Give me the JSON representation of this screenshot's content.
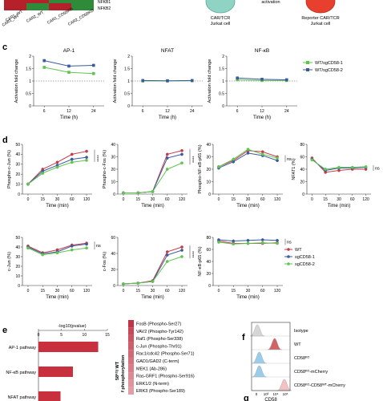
{
  "panel_labels": {
    "c": "c",
    "d": "d",
    "e": "e",
    "f": "f",
    "g": "g"
  },
  "top": {
    "heatmap_rows": [
      "NFKB1",
      "NFKB2"
    ],
    "heatmap_cols": [
      "CAR1_WT",
      "CAR2_WT",
      "CAR1_CD58KO",
      "CAR2_CD58KO"
    ],
    "cell1_label": [
      "CAR/TCR",
      "Jurkat cell"
    ],
    "cell2_label": [
      "Reporter CAR/TCR",
      "Jurkat cell"
    ],
    "arrow_label": "activation",
    "colors": {
      "cell1": "#8fd3c5",
      "cell2": "#e8402f",
      "heat_red": "#b5202b",
      "heat_green": "#2f8a3a"
    }
  },
  "legend_c": [
    "WT/sgCD58-1",
    "WT/sgCD58-2"
  ],
  "legend_d": [
    "WT",
    "sgCD58-1",
    "sgCD58-2"
  ],
  "colors": {
    "wt": "#c43c4c",
    "sg1": "#3a5b9c",
    "sg2": "#5fc450",
    "sg_light_c": "#5fc450",
    "bar": "#c9303e"
  },
  "chart_data": [
    {
      "type": "line",
      "title": "AP-1",
      "ylabel": "Activation fold change",
      "xlabel": "Time (h)",
      "x": [
        6,
        12,
        24
      ],
      "ylim": [
        0,
        2
      ],
      "yticks": [
        0,
        0.5,
        1,
        1.5,
        2
      ],
      "series": [
        {
          "name": "WT/sgCD58-1",
          "values": [
            1.55,
            1.35,
            1.3
          ]
        },
        {
          "name": "WT/sgCD58-2",
          "values": [
            1.82,
            1.6,
            1.63
          ]
        }
      ]
    },
    {
      "type": "line",
      "title": "NFAT",
      "ylabel": "Activation fold change",
      "xlabel": "Time (h)",
      "x": [
        6,
        12,
        24
      ],
      "ylim": [
        0,
        2
      ],
      "yticks": [
        0,
        0.5,
        1,
        1.5,
        2
      ],
      "series": [
        {
          "name": "WT/sgCD58-1",
          "values": [
            1.0,
            1.0,
            1.01
          ]
        },
        {
          "name": "WT/sgCD58-2",
          "values": [
            1.02,
            1.01,
            1.02
          ]
        }
      ]
    },
    {
      "type": "line",
      "title": "NF-κB",
      "ylabel": "Activation fold change",
      "xlabel": "Time (h)",
      "x": [
        6,
        12,
        24
      ],
      "ylim": [
        0,
        2
      ],
      "yticks": [
        0,
        0.5,
        1,
        1.5,
        2
      ],
      "series": [
        {
          "name": "WT/sgCD58-1",
          "values": [
            1.05,
            1.02,
            1.02
          ]
        },
        {
          "name": "WT/sgCD58-2",
          "values": [
            1.12,
            1.07,
            1.05
          ]
        }
      ]
    },
    {
      "type": "line",
      "ylabel": "Phospho-c-Jun (%)",
      "xlabel": "Time (min)",
      "x": [
        0,
        15,
        30,
        60,
        120
      ],
      "ylim": [
        0,
        50
      ],
      "yticks": [
        0,
        10,
        20,
        30,
        40,
        50
      ],
      "sig": "****",
      "series": [
        {
          "name": "WT",
          "values": [
            10,
            25,
            32,
            40,
            43
          ]
        },
        {
          "name": "sgCD58-1",
          "values": [
            10,
            23,
            29,
            35,
            37
          ]
        },
        {
          "name": "sgCD58-2",
          "values": [
            10,
            21,
            27,
            32,
            34
          ]
        }
      ]
    },
    {
      "type": "line",
      "ylabel": "Phospho-c-Fos (%)",
      "xlabel": "Time (min)",
      "x": [
        0,
        15,
        30,
        60,
        120
      ],
      "ylim": [
        0,
        40
      ],
      "yticks": [
        0,
        10,
        20,
        30,
        40
      ],
      "sig": "****",
      "series": [
        {
          "name": "WT",
          "values": [
            1,
            1,
            2,
            32,
            35
          ]
        },
        {
          "name": "sgCD58-1",
          "values": [
            1,
            1,
            2,
            29,
            32
          ]
        },
        {
          "name": "sgCD58-2",
          "values": [
            1,
            1,
            2,
            20,
            25
          ]
        }
      ]
    },
    {
      "type": "line",
      "ylabel": "Phospho-NF-κB-p65 (%)",
      "xlabel": "Time (min)",
      "x": [
        0,
        15,
        30,
        60,
        120
      ],
      "ylim": [
        0,
        40
      ],
      "yticks": [
        0,
        10,
        20,
        30,
        40
      ],
      "sig": "ns",
      "series": [
        {
          "name": "WT",
          "values": [
            22,
            27,
            35,
            34,
            30
          ]
        },
        {
          "name": "sgCD58-1",
          "values": [
            21,
            26,
            33,
            31,
            27
          ]
        },
        {
          "name": "sgCD58-2",
          "values": [
            22,
            28,
            36,
            32,
            29
          ]
        }
      ]
    },
    {
      "type": "line",
      "ylabel": "NFAT1 (%)",
      "xlabel": "Time (min)",
      "x": [
        0,
        15,
        30,
        60,
        120
      ],
      "ylim": [
        0,
        80
      ],
      "yticks": [
        0,
        20,
        40,
        60,
        80
      ],
      "sig": "ns",
      "series": [
        {
          "name": "WT",
          "values": [
            58,
            35,
            38,
            40,
            40
          ]
        },
        {
          "name": "sgCD58-1",
          "values": [
            56,
            38,
            42,
            42,
            43
          ]
        },
        {
          "name": "sgCD58-2",
          "values": [
            55,
            40,
            43,
            43,
            44
          ]
        }
      ]
    },
    {
      "type": "line",
      "ylabel": "c-Jun (%)",
      "xlabel": "Time (min)",
      "x": [
        0,
        15,
        30,
        60,
        120
      ],
      "ylim": [
        0,
        50
      ],
      "yticks": [
        0,
        10,
        20,
        30,
        40,
        50
      ],
      "sig": "ns",
      "series": [
        {
          "name": "WT",
          "values": [
            41,
            34,
            37,
            42,
            44
          ]
        },
        {
          "name": "sgCD58-1",
          "values": [
            40,
            33,
            35,
            41,
            43
          ]
        },
        {
          "name": "sgCD58-2",
          "values": [
            39,
            32,
            34,
            37,
            39
          ]
        }
      ]
    },
    {
      "type": "line",
      "ylabel": "c-Fos (%)",
      "xlabel": "Time (min)",
      "x": [
        0,
        15,
        30,
        60,
        120
      ],
      "ylim": [
        0,
        60
      ],
      "yticks": [
        0,
        20,
        40,
        60
      ],
      "sig": "****",
      "series": [
        {
          "name": "WT",
          "values": [
            2,
            3,
            6,
            42,
            48
          ]
        },
        {
          "name": "sgCD58-1",
          "values": [
            2,
            3,
            5,
            38,
            44
          ]
        },
        {
          "name": "sgCD58-2",
          "values": [
            2,
            3,
            5,
            30,
            36
          ]
        }
      ]
    },
    {
      "type": "line",
      "ylabel": "NF-κB-p65 (%)",
      "xlabel": "Time (min)",
      "x": [
        0,
        15,
        30,
        60,
        120
      ],
      "ylim": [
        0,
        80
      ],
      "yticks": [
        0,
        20,
        40,
        60,
        80
      ],
      "sig": "ns",
      "series": [
        {
          "name": "WT",
          "values": [
            74,
            70,
            70,
            70,
            71
          ]
        },
        {
          "name": "sgCD58-1",
          "values": [
            76,
            74,
            75,
            76,
            75
          ]
        },
        {
          "name": "sgCD58-2",
          "values": [
            72,
            69,
            70,
            71,
            70
          ]
        }
      ]
    },
    {
      "type": "bar",
      "title": "-log10(pvalue)",
      "categories": [
        "AP-1 pathway",
        "NF-κB pathway",
        "NFAT pathway"
      ],
      "values": [
        13,
        7.5,
        4.8
      ],
      "xlim": [
        0,
        15
      ],
      "xticks": [
        0,
        5,
        10,
        15
      ]
    }
  ],
  "panel_e": {
    "phospho_list": [
      "FosB (Phospho-Ser27)",
      "VAV2 (Phospho-Tyr142)",
      "Raf1 (Phospho-Ser338)",
      "c-Jun (Phospho-Thr91)",
      "Rac1/cdc42 (Phospho-Ser71)",
      "GAD1/GAD2 (C-term)",
      "MEK1 (Ab-286)",
      "Ras-GRF1 (Phospho-Ser916)",
      "ERK1/2 (N-term)",
      "ERK3 (Phospho-Ser189)"
    ],
    "side_label_1": "58ᴷᴼ/ WT",
    "side_label_2": "f phosphorylation",
    "heat_levels": [
      0.95,
      0.85,
      0.8,
      0.75,
      0.7,
      0.65,
      0.6,
      0.55,
      0.5,
      0.45
    ]
  },
  "panel_f": {
    "rows": [
      "Isotype",
      "WT",
      "CD58ᴷᴼ",
      "CD58ᴷᴼ-mCherry",
      "CD58ᴷᴼ-CD58ᵂᵀ-mCherry"
    ],
    "xlabel": "CD58",
    "xticks": [
      "0",
      "10³",
      "10⁴",
      "10⁵"
    ],
    "colors": [
      "#cfcfcf",
      "#c8484a",
      "#88c4e8",
      "#88c4e8",
      "#f2b6b8"
    ]
  }
}
